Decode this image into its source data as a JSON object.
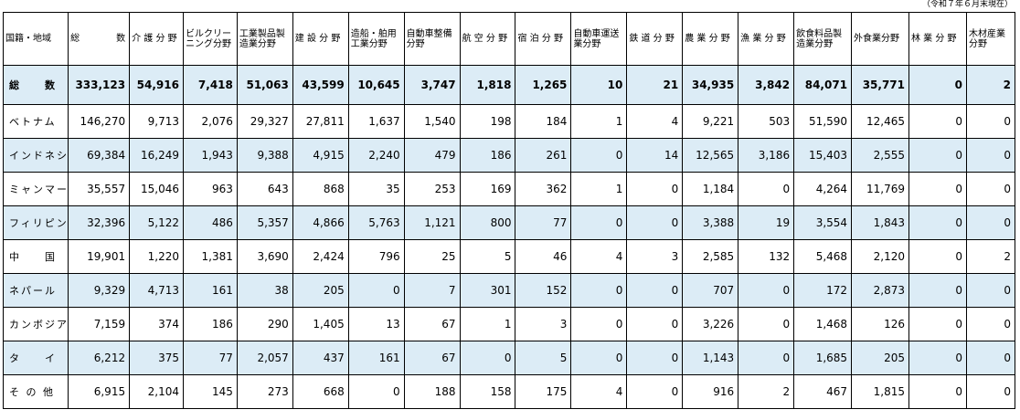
{
  "note": "（令和７年６月末現在）",
  "columns": [
    "国籍・地域",
    "総　　　　数",
    "介 護 分 野",
    "ビルクリーニング分野",
    "工業製品製造業分野",
    "建 設 分 野",
    "造船・舶用工業分野",
    "自動車整備分野",
    "航 空 分 野",
    "宿 泊 分 野",
    "自動車運送業分野",
    "鉄 道 分 野",
    "農 業 分 野",
    "漁 業 分 野",
    "飲食料品製造業分野",
    "外食業分野",
    "林 業 分 野",
    "木材産業分野"
  ],
  "rows": [
    {
      "label": "総　　数",
      "values": [
        "333,123",
        "54,916",
        "7,418",
        "51,063",
        "43,599",
        "10,645",
        "3,747",
        "1,818",
        "1,265",
        "10",
        "21",
        "34,935",
        "3,842",
        "84,071",
        "35,771",
        "0",
        "2"
      ]
    },
    {
      "label": "ベトナム",
      "values": [
        "146,270",
        "9,713",
        "2,076",
        "29,327",
        "27,811",
        "1,637",
        "1,540",
        "198",
        "184",
        "1",
        "4",
        "9,221",
        "503",
        "51,590",
        "12,465",
        "0",
        "0"
      ]
    },
    {
      "label": "インドネシア",
      "values": [
        "69,384",
        "16,249",
        "1,943",
        "9,388",
        "4,915",
        "2,240",
        "479",
        "186",
        "261",
        "0",
        "14",
        "12,565",
        "3,186",
        "15,403",
        "2,555",
        "0",
        "0"
      ]
    },
    {
      "label": "ミャンマー",
      "values": [
        "35,557",
        "15,046",
        "963",
        "643",
        "868",
        "35",
        "253",
        "169",
        "362",
        "1",
        "0",
        "1,184",
        "0",
        "4,264",
        "11,769",
        "0",
        "0"
      ]
    },
    {
      "label": "フィリピン",
      "values": [
        "32,396",
        "5,122",
        "486",
        "5,357",
        "4,866",
        "5,763",
        "1,121",
        "800",
        "77",
        "0",
        "0",
        "3,388",
        "19",
        "3,554",
        "1,843",
        "0",
        "0"
      ]
    },
    {
      "label": "中　　国",
      "values": [
        "19,901",
        "1,220",
        "1,381",
        "3,690",
        "2,424",
        "796",
        "25",
        "5",
        "46",
        "4",
        "3",
        "2,585",
        "132",
        "5,468",
        "2,120",
        "0",
        "2"
      ]
    },
    {
      "label": "ネパール",
      "values": [
        "9,329",
        "4,713",
        "161",
        "38",
        "205",
        "0",
        "7",
        "301",
        "152",
        "0",
        "0",
        "707",
        "0",
        "172",
        "2,873",
        "0",
        "0"
      ]
    },
    {
      "label": "カンボジア",
      "values": [
        "7,159",
        "374",
        "186",
        "290",
        "1,405",
        "13",
        "67",
        "1",
        "3",
        "0",
        "0",
        "3,226",
        "0",
        "1,468",
        "126",
        "0",
        "0"
      ]
    },
    {
      "label": "タ　　イ",
      "values": [
        "6,212",
        "375",
        "77",
        "2,057",
        "437",
        "161",
        "67",
        "0",
        "5",
        "0",
        "0",
        "1,143",
        "0",
        "1,685",
        "205",
        "0",
        "0"
      ]
    },
    {
      "label": "そ の 他",
      "values": [
        "6,915",
        "2,104",
        "145",
        "273",
        "668",
        "0",
        "188",
        "158",
        "175",
        "4",
        "0",
        "916",
        "2",
        "467",
        "1,815",
        "0",
        "0"
      ]
    }
  ]
}
